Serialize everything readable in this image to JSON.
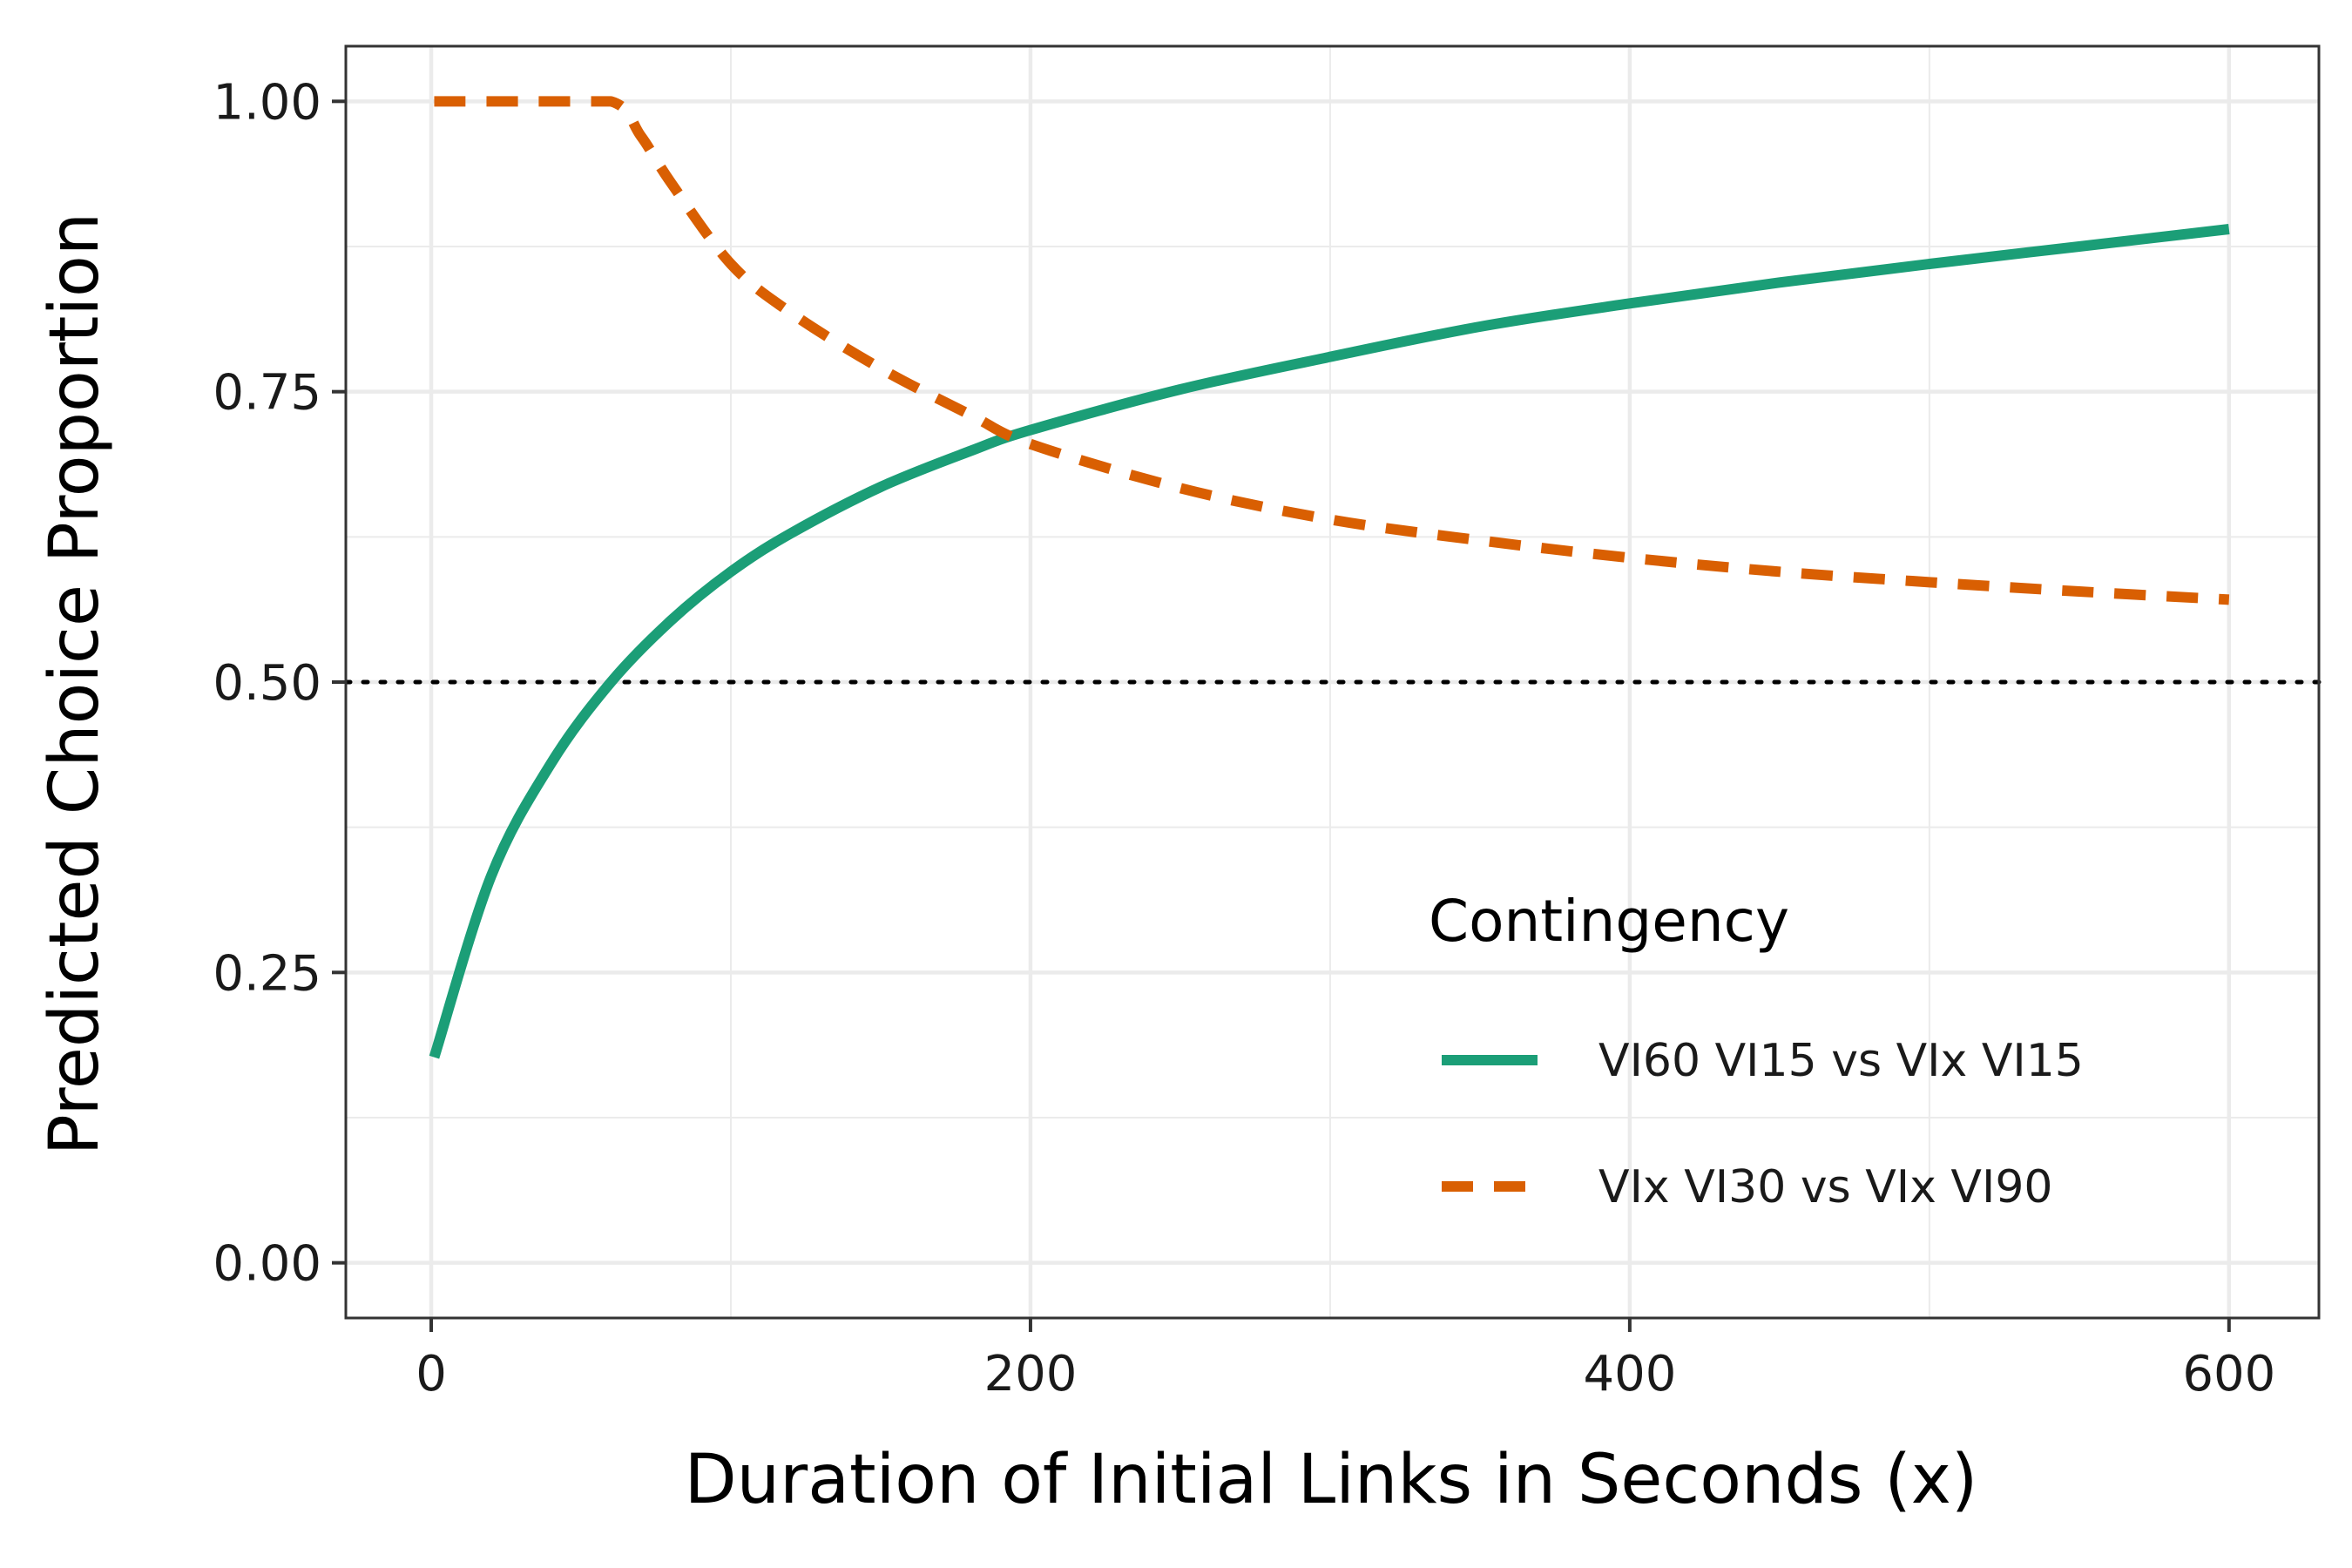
{
  "chart_data": {
    "type": "line",
    "xlabel": "Duration of Initial Links in Seconds (x)",
    "ylabel": "Predicted Choice Proportion",
    "xlim": [
      -28.5,
      630
    ],
    "ylim": [
      -0.0475,
      1.0475
    ],
    "x_ticks": [
      0,
      200,
      400,
      600
    ],
    "x_tick_labels": [
      "0",
      "200",
      "400",
      "600"
    ],
    "y_ticks": [
      0,
      0.25,
      0.5,
      0.75,
      1.0
    ],
    "y_tick_labels": [
      "0.00",
      "0.25",
      "0.50",
      "0.75",
      "1.00"
    ],
    "grid": true,
    "reference_line": {
      "y": 0.5,
      "style": "dotted",
      "color": "#000000"
    },
    "legend": {
      "title": "Contingency",
      "position": "bottom-right"
    },
    "series": [
      {
        "name": "VI60 VI15 vs VIx VI15",
        "color": "#1b9e77",
        "style": "solid",
        "x": [
          1,
          20,
          40,
          60,
          80,
          100,
          120,
          150,
          180,
          200,
          250,
          300,
          350,
          400,
          450,
          500,
          550,
          600
        ],
        "y": [
          0.177,
          0.333,
          0.43,
          0.5,
          0.553,
          0.595,
          0.628,
          0.668,
          0.699,
          0.717,
          0.752,
          0.78,
          0.806,
          0.826,
          0.844,
          0.86,
          0.875,
          0.89
        ]
      },
      {
        "name": "VIx VI30 vs VIx VI90",
        "color": "#d95f02",
        "style": "dashed",
        "x": [
          1,
          30,
          60,
          70,
          80,
          100,
          120,
          150,
          180,
          200,
          250,
          300,
          350,
          400,
          450,
          500,
          550,
          600
        ],
        "y": [
          1.0,
          1.0,
          1.0,
          0.97,
          0.93,
          0.86,
          0.818,
          0.77,
          0.73,
          0.705,
          0.667,
          0.64,
          0.622,
          0.607,
          0.595,
          0.586,
          0.578,
          0.571
        ]
      }
    ]
  }
}
